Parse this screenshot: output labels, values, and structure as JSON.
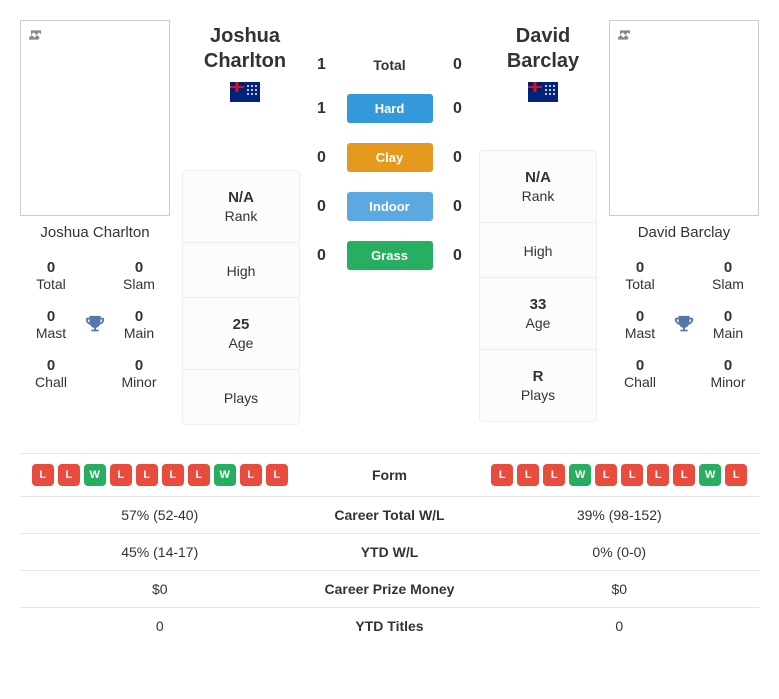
{
  "colors": {
    "hard": "#3498db",
    "clay": "#e59a1e",
    "indoor": "#5ba9e0",
    "grass": "#27ae60",
    "loss": "#e74c3c",
    "win": "#27ae60",
    "trophy": "#5577aa"
  },
  "player1": {
    "name_line1": "Joshua",
    "name_line2": "Charlton",
    "full_name": "Joshua Charlton",
    "country": "Australia",
    "titles": {
      "total": "0",
      "slam": "0",
      "mast": "0",
      "main": "0",
      "chall": "0",
      "minor": "0"
    },
    "rank": "N/A",
    "high": "",
    "age": "25",
    "plays": "",
    "form": [
      "L",
      "L",
      "W",
      "L",
      "L",
      "L",
      "L",
      "W",
      "L",
      "L"
    ],
    "career_wl": "57% (52-40)",
    "ytd_wl": "45% (14-17)",
    "career_prize": "$0",
    "ytd_titles": "0"
  },
  "h2h": {
    "total_label": "Total",
    "surfaces": [
      {
        "label": "Hard",
        "color": "#3498db"
      },
      {
        "label": "Clay",
        "color": "#e59a1e"
      },
      {
        "label": "Indoor",
        "color": "#5ba9e0"
      },
      {
        "label": "Grass",
        "color": "#27ae60"
      }
    ],
    "p1": {
      "total": "1",
      "hard": "1",
      "clay": "0",
      "indoor": "0",
      "grass": "0"
    },
    "p2": {
      "total": "0",
      "hard": "0",
      "clay": "0",
      "indoor": "0",
      "grass": "0"
    }
  },
  "player2": {
    "name_line1": "David",
    "name_line2": "Barclay",
    "full_name": "David Barclay",
    "country": "Australia",
    "titles": {
      "total": "0",
      "slam": "0",
      "mast": "0",
      "main": "0",
      "chall": "0",
      "minor": "0"
    },
    "rank": "N/A",
    "high": "",
    "age": "33",
    "plays": "R",
    "form": [
      "L",
      "L",
      "L",
      "W",
      "L",
      "L",
      "L",
      "L",
      "W",
      "L"
    ],
    "career_wl": "39% (98-152)",
    "ytd_wl": "0% (0-0)",
    "career_prize": "$0",
    "ytd_titles": "0"
  },
  "labels": {
    "total": "Total",
    "slam": "Slam",
    "mast": "Mast",
    "main": "Main",
    "chall": "Chall",
    "minor": "Minor",
    "rank": "Rank",
    "high": "High",
    "age": "Age",
    "plays": "Plays",
    "form": "Form",
    "career_wl": "Career Total W/L",
    "ytd_wl": "YTD W/L",
    "career_prize": "Career Prize Money",
    "ytd_titles": "YTD Titles"
  }
}
